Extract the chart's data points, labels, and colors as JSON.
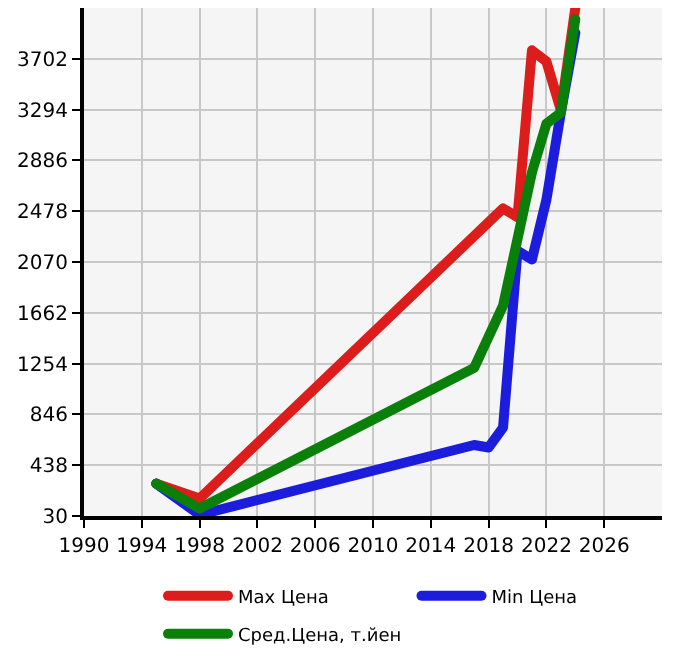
{
  "chart_data": {
    "type": "line",
    "xlim": [
      1990,
      2030
    ],
    "xticks": [
      1990,
      1994,
      1998,
      2002,
      2006,
      2010,
      2014,
      2018,
      2022,
      2026
    ],
    "ylim": [
      30,
      4110
    ],
    "yticks": [
      30,
      438,
      846,
      1254,
      1662,
      2070,
      2478,
      2886,
      3294,
      3702
    ],
    "grid": true,
    "legend": "bottom",
    "marker": "none",
    "line_style": "solid",
    "series": [
      {
        "name": "Max Цена",
        "color": "#dd1c1c",
        "x": [
          1995,
          1998,
          2019,
          2020,
          2021,
          2022,
          2023,
          2024
        ],
        "values": [
          290,
          170,
          2500,
          2430,
          3770,
          3680,
          3290,
          4110
        ]
      },
      {
        "name": "Min Цена",
        "color": "#1c1cdd",
        "x": [
          1995,
          1998,
          2017,
          2018,
          2019,
          2020,
          2021,
          2022,
          2023,
          2024
        ],
        "values": [
          290,
          40,
          600,
          580,
          740,
          2160,
          2090,
          2570,
          3270,
          3910
        ]
      },
      {
        "name": "Сред.Цена, т.йен",
        "color": "#0a7f0a",
        "x": [
          1995,
          1998,
          2017,
          2019,
          2021,
          2022,
          2023,
          2024
        ],
        "values": [
          290,
          90,
          1220,
          1720,
          2790,
          3180,
          3270,
          4020
        ]
      }
    ]
  }
}
